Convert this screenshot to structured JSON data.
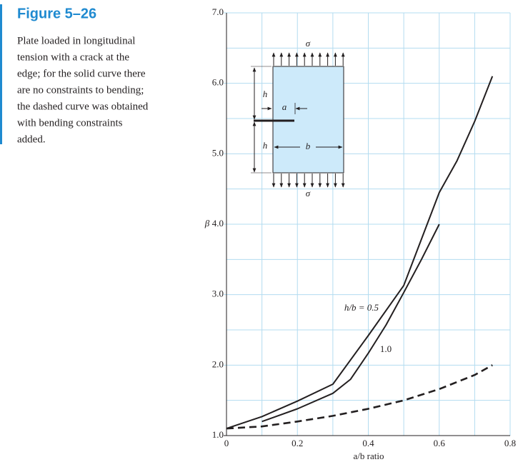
{
  "figure": {
    "title": "Figure 5–26",
    "caption": [
      "Plate loaded in longitudinal",
      "tension with a crack at the",
      "edge; for the solid curve there",
      "are no constraints to bending;",
      "the dashed curve was obtained",
      "with bending constraints",
      "added."
    ]
  },
  "chart_data": {
    "type": "line",
    "xlabel": "a/b ratio",
    "ylabel": "β",
    "xlim": [
      0,
      0.8
    ],
    "ylim": [
      1,
      7
    ],
    "xticks": [
      0,
      0.2,
      0.4,
      0.6,
      0.8
    ],
    "yticks": [
      {
        "value": 1,
        "label": "1.0"
      },
      {
        "value": 2,
        "label": "2.0"
      },
      {
        "value": 3,
        "label": "3.0"
      },
      {
        "value": 4,
        "label": "4.0"
      },
      {
        "value": 5,
        "label": "5.0"
      },
      {
        "value": 6,
        "label": "6.0"
      },
      {
        "value": 7,
        "label": "7.0"
      }
    ],
    "xminor": [
      0.1,
      0.3,
      0.5,
      0.7
    ],
    "yminor": [
      1.5,
      2.5,
      3.5,
      4.5,
      5.5,
      6.5
    ],
    "grid": true,
    "grid_color": "#b3dcf0",
    "series": [
      {
        "color": "#231f20",
        "style": "solid",
        "x": [
          0,
          0.1,
          0.2,
          0.3,
          0.4,
          0.5,
          0.6,
          0.65,
          0.7,
          0.75
        ],
        "values": [
          1.1,
          1.27,
          1.49,
          1.73,
          2.42,
          3.13,
          4.45,
          4.9,
          5.46,
          6.1
        ]
      },
      {
        "color": "#231f20",
        "style": "solid",
        "x": [
          0.1,
          0.2,
          0.3,
          0.35,
          0.4,
          0.45,
          0.5,
          0.55,
          0.6
        ],
        "values": [
          1.2,
          1.38,
          1.6,
          1.8,
          2.17,
          2.57,
          3.03,
          3.5,
          4.0
        ]
      },
      {
        "color": "#231f20",
        "style": "dashed",
        "x": [
          0,
          0.1,
          0.2,
          0.3,
          0.4,
          0.5,
          0.6,
          0.7,
          0.75
        ],
        "values": [
          1.1,
          1.13,
          1.2,
          1.28,
          1.38,
          1.5,
          1.66,
          1.86,
          2.0
        ]
      }
    ],
    "annotations": [
      "h/b = 0.5",
      "1.0"
    ],
    "diagram_labels": {
      "sigma_top": "σ",
      "sigma_bottom": "σ",
      "h_top": "h",
      "h_bottom": "h",
      "a": "a",
      "b": "b"
    }
  }
}
